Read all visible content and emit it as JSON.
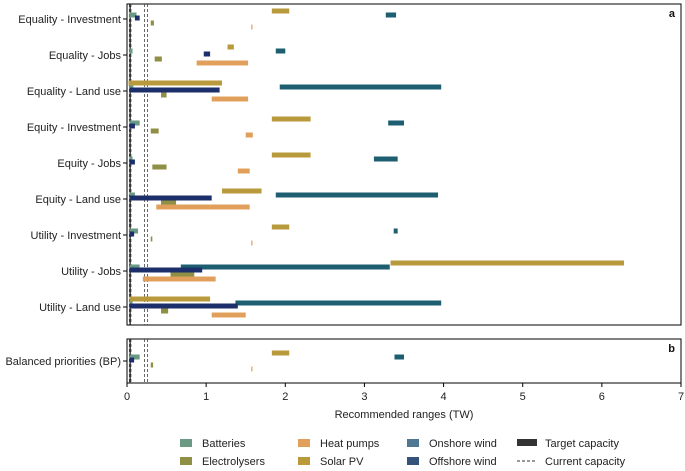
{
  "chart_data": {
    "type": "bar",
    "orientation": "horizontal",
    "xlabel": "Recommended ranges (TW)",
    "xlim": [
      0,
      7
    ],
    "xticks": [
      "0",
      "1",
      "2",
      "3",
      "4",
      "5",
      "6",
      "7"
    ],
    "panels": [
      {
        "letter": "a",
        "categories": [
          "Equality - Investment",
          "Equality - Jobs",
          "Equality - Land use",
          "Equity - Investment",
          "Equity - Jobs",
          "Equity - Land use",
          "Utility - Investment",
          "Utility - Jobs",
          "Utility - Land use"
        ]
      },
      {
        "letter": "b",
        "categories": [
          "Balanced priorities (BP)"
        ]
      }
    ],
    "series": [
      {
        "name": "Batteries",
        "color": "#6b9a84",
        "ranges": [
          [
            0.03,
            0.12
          ],
          [
            0.03,
            0.07
          ],
          [
            0.03,
            0.08
          ],
          [
            0.03,
            0.16
          ],
          [
            0.03,
            0.07
          ],
          [
            0.03,
            0.1
          ],
          [
            0.03,
            0.14
          ],
          [
            0.03,
            0.16
          ],
          [
            0.03,
            0.07
          ],
          [
            0.03,
            0.16
          ]
        ]
      },
      {
        "name": "Electrolysers",
        "color": "#8f8f45",
        "ranges": [
          [
            0.3,
            0.34
          ],
          [
            0.35,
            0.44
          ],
          [
            0.43,
            0.5
          ],
          [
            0.3,
            0.4
          ],
          [
            0.32,
            0.5
          ],
          [
            0.43,
            0.62
          ],
          [
            0.3,
            0.32
          ],
          [
            0.55,
            0.85
          ],
          [
            0.43,
            0.52
          ],
          [
            0.3,
            0.33
          ]
        ]
      },
      {
        "name": "Heat pumps",
        "color": "#e0a05b",
        "ranges": [
          [
            1.57,
            1.58
          ],
          [
            0.88,
            1.53
          ],
          [
            1.07,
            1.53
          ],
          [
            1.5,
            1.59
          ],
          [
            1.4,
            1.55
          ],
          [
            0.37,
            1.55
          ],
          [
            1.57,
            1.58
          ],
          [
            0.2,
            1.12
          ],
          [
            1.07,
            1.5
          ],
          [
            1.57,
            1.58
          ]
        ]
      },
      {
        "name": "Solar PV",
        "color": "#b8993c",
        "ranges": [
          [
            1.83,
            2.05
          ],
          [
            1.27,
            1.35
          ],
          [
            0.02,
            1.2
          ],
          [
            1.83,
            2.32
          ],
          [
            1.83,
            2.32
          ],
          [
            1.2,
            1.7
          ],
          [
            1.83,
            2.05
          ],
          [
            3.33,
            6.28
          ],
          [
            0.03,
            1.05
          ],
          [
            1.83,
            2.05
          ]
        ]
      },
      {
        "name": "Onshore wind",
        "color": "#1d5e70",
        "ranges": [
          [
            3.27,
            3.4
          ],
          [
            1.88,
            2.0
          ],
          [
            1.93,
            3.97
          ],
          [
            3.3,
            3.5
          ],
          [
            3.12,
            3.42
          ],
          [
            1.88,
            3.93
          ],
          [
            3.37,
            3.42
          ],
          [
            0.68,
            3.32
          ],
          [
            1.37,
            3.97
          ],
          [
            3.38,
            3.5
          ]
        ]
      },
      {
        "name": "Offshore wind",
        "color": "#1c2f6b",
        "ranges": [
          [
            0.1,
            0.16
          ],
          [
            0.97,
            1.05
          ],
          [
            0.03,
            1.17
          ],
          [
            0.03,
            0.1
          ],
          [
            0.03,
            0.1
          ],
          [
            0.03,
            1.07
          ],
          [
            0.03,
            0.09
          ],
          [
            0.03,
            0.95
          ],
          [
            0.03,
            1.4
          ],
          [
            0.03,
            0.09
          ]
        ]
      }
    ],
    "current_capacity_lines": [
      0.03,
      0.05,
      0.22,
      0.26
    ],
    "target_capacity_lines": [
      0.04
    ]
  },
  "legend": {
    "items": [
      {
        "label": "Batteries",
        "color": "#6b9a84",
        "kind": "swatch"
      },
      {
        "label": "Electrolysers",
        "color": "#8f8f45",
        "kind": "swatch"
      },
      {
        "label": "Heat pumps",
        "color": "#e0a05b",
        "kind": "swatch"
      },
      {
        "label": "Solar PV",
        "color": "#b8993c",
        "kind": "swatch"
      },
      {
        "label": "Onshore wind",
        "color": "#4f7892",
        "kind": "swatch"
      },
      {
        "label": "Offshore wind",
        "color": "#34527a",
        "kind": "swatch"
      },
      {
        "label": "Target capacity",
        "color": "#333333",
        "kind": "solid"
      },
      {
        "label": "Current capacity",
        "color": "#333333",
        "kind": "dashed"
      }
    ]
  }
}
